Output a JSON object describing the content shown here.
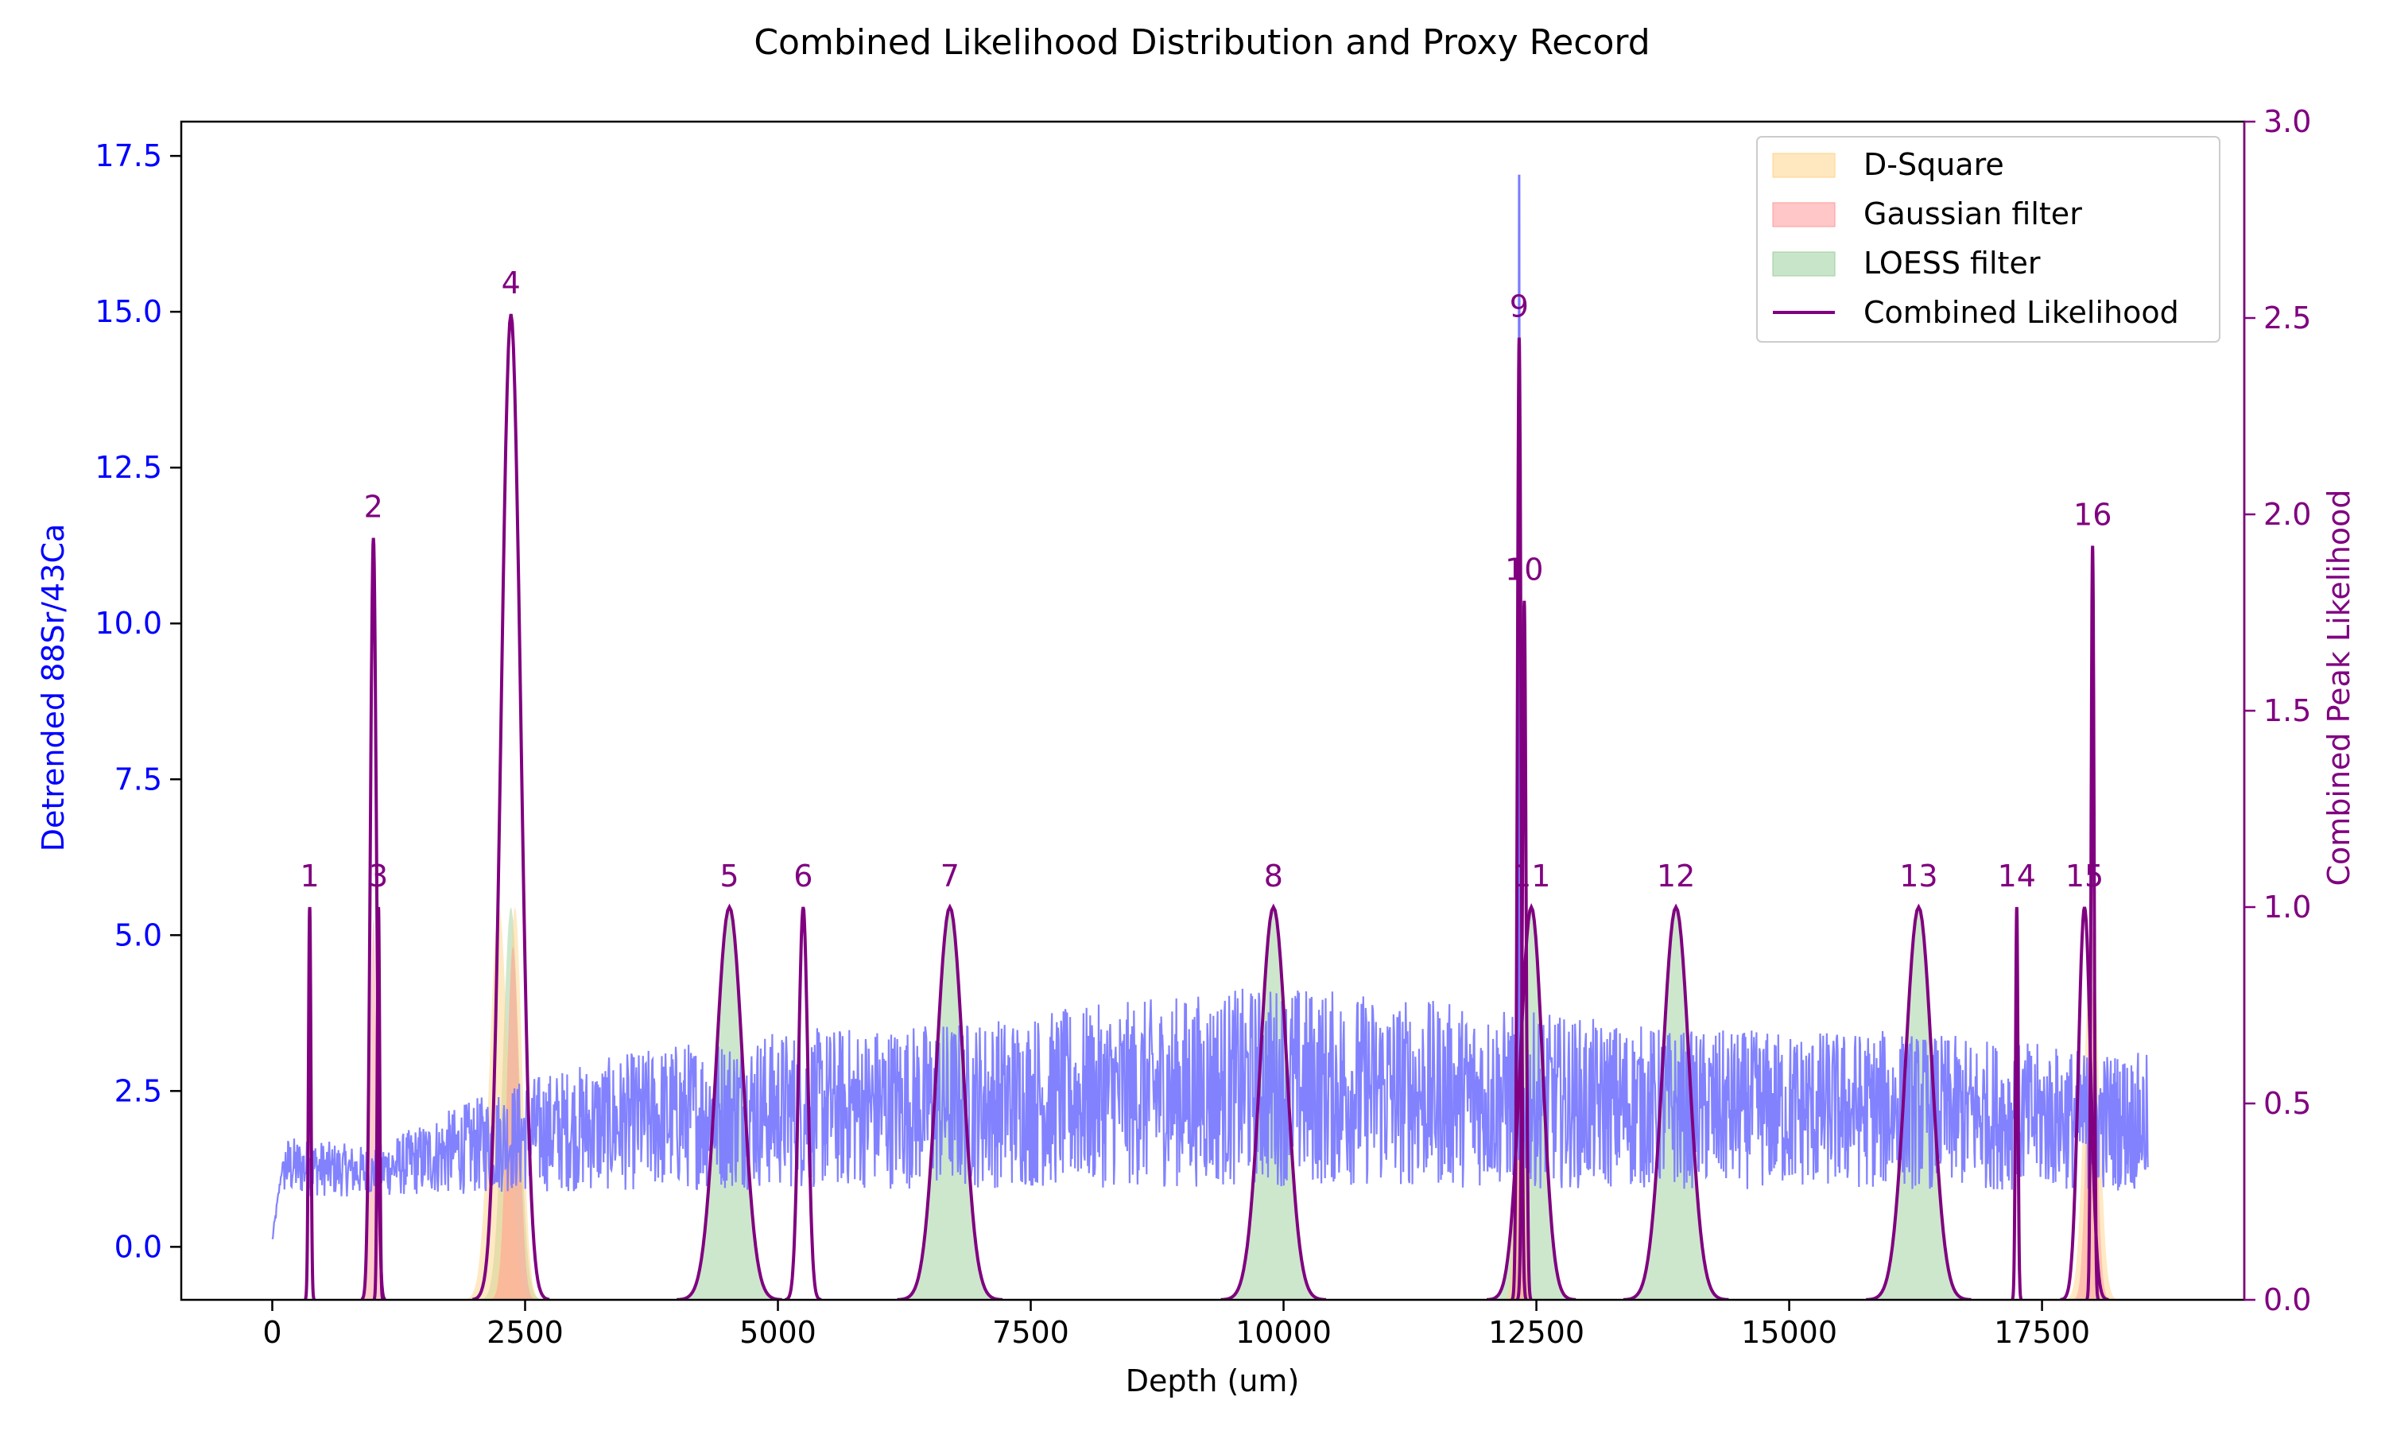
{
  "chart_data": {
    "type": "line",
    "title": "Combined Likelihood Distribution and Proxy Record",
    "xlabel": "Depth (um)",
    "ylabel_left": "Detrended 88Sr/43Ca",
    "ylabel_right": "Combined Peak Likelihood",
    "xlim": [
      -900,
      19500
    ],
    "ylim_left": [
      -0.85,
      18.05
    ],
    "ylim_right": [
      0,
      3.0
    ],
    "xticks": [
      "0",
      "2500",
      "5000",
      "7500",
      "10000",
      "12500",
      "15000",
      "17500"
    ],
    "xtick_values": [
      0,
      2500,
      5000,
      7500,
      10000,
      12500,
      15000,
      17500
    ],
    "yticks_left": [
      "0.0",
      "2.5",
      "5.0",
      "7.5",
      "10.0",
      "12.5",
      "15.0",
      "17.5"
    ],
    "ytick_left_values": [
      0,
      2.5,
      5,
      7.5,
      10,
      12.5,
      15,
      17.5
    ],
    "yticks_right": [
      "0.0",
      "0.5",
      "1.0",
      "1.5",
      "2.0",
      "2.5",
      "3.0"
    ],
    "ytick_right_values": [
      0,
      0.5,
      1.0,
      1.5,
      2.0,
      2.5,
      3.0
    ],
    "legend_position": "top-right",
    "legend": [
      {
        "label": "D-Square",
        "kind": "fill",
        "color": "#ffd38a"
      },
      {
        "label": "Gaussian filter",
        "kind": "fill",
        "color": "#ff9999"
      },
      {
        "label": "LOESS filter",
        "kind": "fill",
        "color": "#9ccf9c"
      },
      {
        "label": "Combined Likelihood",
        "kind": "line",
        "color": "#800080"
      }
    ],
    "colors": {
      "proxy": "#7b7bff",
      "combined": "#800080",
      "left_axis": "#0000ff",
      "right_axis": "#800080",
      "d_square": "#ffd38a",
      "gaussian": "#ff9999",
      "loess": "#9ccf9c"
    },
    "proxy_series": {
      "name": "",
      "x_range": [
        0,
        18550
      ],
      "baseline_points": [
        {
          "x": 0,
          "y": 0.1
        },
        {
          "x": 100,
          "y": 1.3
        },
        {
          "x": 1000,
          "y": 1.2
        },
        {
          "x": 1700,
          "y": 1.5
        },
        {
          "x": 2500,
          "y": 1.8
        },
        {
          "x": 4000,
          "y": 2.1
        },
        {
          "x": 5000,
          "y": 2.2
        },
        {
          "x": 7000,
          "y": 2.3
        },
        {
          "x": 9000,
          "y": 2.5
        },
        {
          "x": 10000,
          "y": 2.6
        },
        {
          "x": 12000,
          "y": 2.4
        },
        {
          "x": 14000,
          "y": 2.2
        },
        {
          "x": 16000,
          "y": 2.2
        },
        {
          "x": 18550,
          "y": 2.0
        }
      ],
      "spikes": [
        {
          "x": 12330,
          "y": 17.2
        },
        {
          "x": 12350,
          "y": 8.3
        }
      ]
    },
    "combined_peaks": [
      {
        "label": "1",
        "center": 370,
        "height": 1.0,
        "width": 12
      },
      {
        "label": "2",
        "center": 1000,
        "height": 1.94,
        "width": 30
      },
      {
        "label": "3",
        "center": 1050,
        "height": 1.0,
        "width": 12
      },
      {
        "label": "4",
        "center": 2360,
        "height": 2.51,
        "width": 95
      },
      {
        "label": "5",
        "center": 4520,
        "height": 1.0,
        "width": 130
      },
      {
        "label": "6",
        "center": 5250,
        "height": 1.0,
        "width": 45
      },
      {
        "label": "7",
        "center": 6700,
        "height": 1.0,
        "width": 130
      },
      {
        "label": "8",
        "center": 9900,
        "height": 1.0,
        "width": 130
      },
      {
        "label": "9",
        "center": 12330,
        "height": 2.45,
        "width": 18
      },
      {
        "label": "10",
        "center": 12380,
        "height": 1.78,
        "width": 18
      },
      {
        "label": "11",
        "center": 12450,
        "height": 1.0,
        "width": 110
      },
      {
        "label": "12",
        "center": 13880,
        "height": 1.0,
        "width": 130
      },
      {
        "label": "13",
        "center": 16280,
        "height": 1.0,
        "width": 130
      },
      {
        "label": "14",
        "center": 17250,
        "height": 1.0,
        "width": 12
      },
      {
        "label": "15",
        "center": 17920,
        "height": 1.0,
        "width": 60
      },
      {
        "label": "16",
        "center": 18000,
        "height": 1.92,
        "width": 15
      }
    ],
    "d_square_fills": [
      {
        "center": 2240,
        "height": 1.0,
        "width": 90
      },
      {
        "center": 2400,
        "height": 1.0,
        "width": 70
      },
      {
        "center": 12330,
        "height": 1.0,
        "width": 40
      },
      {
        "center": 17990,
        "height": 0.95,
        "width": 70
      }
    ],
    "gaussian_fills": [
      {
        "center": 1000,
        "height": 0.97,
        "width": 30
      },
      {
        "center": 2380,
        "height": 0.9,
        "width": 60
      },
      {
        "center": 12340,
        "height": 1.0,
        "width": 30
      },
      {
        "center": 17990,
        "height": 0.8,
        "width": 50
      }
    ],
    "loess_fills": [
      {
        "center": 2360,
        "height": 1.0,
        "width": 80
      },
      {
        "center": 4520,
        "height": 1.0,
        "width": 130
      },
      {
        "center": 6700,
        "height": 1.0,
        "width": 130
      },
      {
        "center": 9900,
        "height": 1.0,
        "width": 130
      },
      {
        "center": 12450,
        "height": 1.0,
        "width": 110
      },
      {
        "center": 13880,
        "height": 1.0,
        "width": 130
      },
      {
        "center": 16280,
        "height": 1.0,
        "width": 130
      }
    ]
  }
}
